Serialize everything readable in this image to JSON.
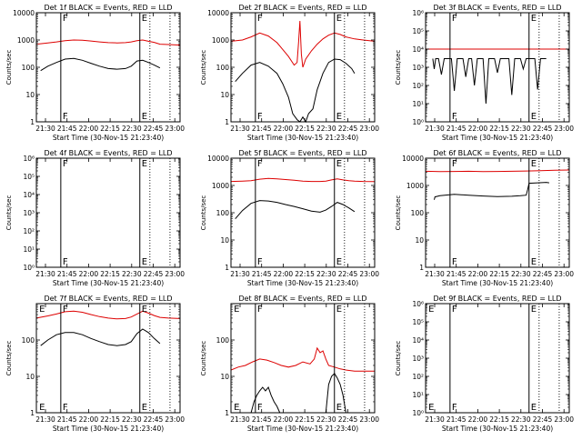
{
  "x_axis_label": "Start Time (30-Nov-15 21:23:40)",
  "y_axis_label": "Counts/sec",
  "x_tick_labels": [
    "21:30",
    "21:45",
    "22:00",
    "22:15",
    "22:30",
    "22:45",
    "23:00"
  ],
  "x_ticks_min": [
    6.33,
    21.33,
    36.33,
    51.33,
    66.33,
    81.33,
    96.33
  ],
  "x_range_min": [
    0,
    100
  ],
  "colors": {
    "events": "#000000",
    "lld": "#dd0000",
    "axes": "#000000"
  },
  "chart_data": [
    {
      "type": "line",
      "title": "Det 1f BLACK = Events, RED = LLD",
      "ylim": [
        1,
        10000
      ],
      "yscale": "log",
      "y_tick_labels": [
        "1",
        "10",
        "100",
        "1000",
        "10000"
      ],
      "y_tick_values": [
        1,
        10,
        100,
        1000,
        10000
      ],
      "markers": [
        {
          "label": "F",
          "x": 17,
          "style": "solid"
        },
        {
          "label": "E",
          "x": 72,
          "style": "solid"
        },
        {
          "label": "",
          "x": 79,
          "style": "dotted"
        },
        {
          "label": "",
          "x": 93,
          "style": "dotted"
        }
      ],
      "series": [
        {
          "role": "events",
          "x": [
            3,
            8,
            14,
            20,
            26,
            32,
            38,
            44,
            50,
            56,
            62,
            66,
            70,
            74,
            78,
            82,
            86
          ],
          "y": [
            75,
            110,
            150,
            200,
            210,
            180,
            140,
            110,
            90,
            85,
            90,
            110,
            170,
            180,
            150,
            120,
            95
          ]
        },
        {
          "role": "lld",
          "x": [
            0,
            8,
            14,
            20,
            26,
            32,
            38,
            44,
            50,
            56,
            62,
            66,
            70,
            74,
            78,
            82,
            86,
            92,
            100
          ],
          "y": [
            700,
            780,
            850,
            950,
            1000,
            980,
            920,
            850,
            800,
            780,
            800,
            850,
            950,
            1000,
            900,
            820,
            700,
            680,
            650
          ]
        }
      ]
    },
    {
      "type": "line",
      "title": "Det 2f BLACK = Events, RED = LLD",
      "ylim": [
        1,
        10000
      ],
      "yscale": "log",
      "y_tick_labels": [
        "1",
        "10",
        "100",
        "1000",
        "10000"
      ],
      "y_tick_values": [
        1,
        10,
        100,
        1000,
        10000
      ],
      "markers": [
        {
          "label": "F",
          "x": 17,
          "style": "solid"
        },
        {
          "label": "E",
          "x": 72,
          "style": "solid"
        },
        {
          "label": "",
          "x": 79,
          "style": "dotted"
        },
        {
          "label": "",
          "x": 93,
          "style": "dotted"
        }
      ],
      "series": [
        {
          "role": "events",
          "x": [
            3,
            8,
            14,
            20,
            26,
            32,
            36,
            40,
            43,
            46,
            48,
            50,
            52,
            54,
            57,
            60,
            64,
            68,
            72,
            76,
            80,
            84,
            86
          ],
          "y": [
            30,
            60,
            120,
            150,
            110,
            60,
            25,
            8,
            2,
            1.2,
            1,
            1.5,
            1,
            2,
            3,
            15,
            60,
            150,
            200,
            190,
            140,
            90,
            60
          ]
        },
        {
          "role": "lld",
          "x": [
            0,
            8,
            14,
            20,
            26,
            32,
            36,
            40,
            44,
            46,
            47,
            48,
            49,
            50,
            52,
            56,
            60,
            64,
            68,
            72,
            76,
            80,
            86,
            92,
            100
          ],
          "y": [
            900,
            1000,
            1300,
            1800,
            1400,
            800,
            450,
            250,
            120,
            150,
            800,
            5000,
            300,
            100,
            200,
            400,
            700,
            1100,
            1500,
            1800,
            1600,
            1300,
            1100,
            1000,
            900
          ]
        }
      ]
    },
    {
      "type": "line",
      "title": "Det 3f BLACK = Events, RED = LLD",
      "ylim": [
        1,
        1000000
      ],
      "yscale": "log",
      "y_tick_labels": [
        "10⁰",
        "10¹",
        "10²",
        "10³",
        "10⁴",
        "10⁵",
        "10⁶"
      ],
      "y_tick_values": [
        1,
        10,
        100,
        1000,
        10000,
        100000,
        1000000
      ],
      "markers": [
        {
          "label": "F",
          "x": 17,
          "style": "solid"
        },
        {
          "label": "E",
          "x": 72,
          "style": "solid"
        },
        {
          "label": "",
          "x": 79,
          "style": "dotted"
        },
        {
          "label": "",
          "x": 93,
          "style": "dotted"
        }
      ],
      "series": [
        {
          "role": "events",
          "x": [
            5,
            6,
            7,
            9,
            11,
            13,
            15,
            18,
            20,
            22,
            24,
            26,
            28,
            30,
            32,
            34,
            36,
            38,
            40,
            42,
            44,
            46,
            48,
            50,
            52,
            54,
            56,
            58,
            60,
            62,
            64,
            66,
            68,
            70,
            72,
            74,
            76,
            78,
            80,
            82,
            84
          ],
          "y": [
            3000,
            800,
            3000,
            3000,
            400,
            3000,
            3000,
            3000,
            50,
            3000,
            3000,
            3000,
            300,
            3000,
            3000,
            100,
            3000,
            3000,
            3000,
            10,
            3000,
            3000,
            3000,
            500,
            3000,
            3000,
            3000,
            3000,
            30,
            3000,
            3000,
            3000,
            800,
            3000,
            3000,
            3000,
            3000,
            60,
            3000,
            3000,
            3000
          ]
        },
        {
          "role": "lld",
          "x": [
            0,
            100
          ],
          "y": [
            10000,
            10000
          ]
        }
      ]
    },
    {
      "type": "line",
      "title": "Det 4f BLACK = Events, RED = LLD",
      "ylim": [
        1,
        1000000
      ],
      "yscale": "log",
      "y_tick_labels": [
        "10⁰",
        "10¹",
        "10²",
        "10³",
        "10⁴",
        "10⁵",
        "10⁶"
      ],
      "y_tick_values": [
        1,
        10,
        100,
        1000,
        10000,
        100000,
        1000000
      ],
      "markers": [
        {
          "label": "F",
          "x": 17,
          "style": "solid"
        },
        {
          "label": "E",
          "x": 72,
          "style": "solid"
        },
        {
          "label": "",
          "x": 79,
          "style": "dotted"
        },
        {
          "label": "",
          "x": 93,
          "style": "dotted"
        }
      ],
      "series": []
    },
    {
      "type": "line",
      "title": "Det 5f BLACK = Events, RED = LLD",
      "ylim": [
        1,
        10000
      ],
      "yscale": "log",
      "y_tick_labels": [
        "1",
        "10",
        "100",
        "1000",
        "10000"
      ],
      "y_tick_values": [
        1,
        10,
        100,
        1000,
        10000
      ],
      "markers": [
        {
          "label": "F",
          "x": 17,
          "style": "solid"
        },
        {
          "label": "E",
          "x": 72,
          "style": "solid"
        },
        {
          "label": "",
          "x": 79,
          "style": "dotted"
        },
        {
          "label": "",
          "x": 93,
          "style": "dotted"
        }
      ],
      "series": [
        {
          "role": "events",
          "x": [
            3,
            8,
            14,
            20,
            26,
            32,
            38,
            44,
            50,
            56,
            62,
            66,
            70,
            74,
            78,
            82,
            86
          ],
          "y": [
            60,
            120,
            220,
            280,
            270,
            240,
            200,
            170,
            140,
            115,
            105,
            125,
            170,
            240,
            200,
            150,
            110
          ]
        },
        {
          "role": "lld",
          "x": [
            0,
            8,
            14,
            20,
            26,
            32,
            38,
            44,
            50,
            56,
            62,
            66,
            70,
            74,
            78,
            82,
            86,
            92,
            100
          ],
          "y": [
            1400,
            1450,
            1500,
            1700,
            1800,
            1750,
            1650,
            1550,
            1450,
            1400,
            1400,
            1450,
            1600,
            1750,
            1600,
            1500,
            1450,
            1400,
            1380
          ]
        }
      ]
    },
    {
      "type": "line",
      "title": "Det 6f BLACK = Events, RED = LLD",
      "ylim": [
        1,
        10000
      ],
      "yscale": "log",
      "y_tick_labels": [
        "1",
        "10",
        "100",
        "1000",
        "10000"
      ],
      "y_tick_values": [
        1,
        10,
        100,
        1000,
        10000
      ],
      "markers": [
        {
          "label": "F",
          "x": 17,
          "style": "solid"
        },
        {
          "label": "E",
          "x": 72,
          "style": "solid"
        },
        {
          "label": "",
          "x": 79,
          "style": "dotted"
        },
        {
          "label": "",
          "x": 93,
          "style": "dotted"
        }
      ],
      "series": [
        {
          "role": "events",
          "x": [
            6,
            6.5,
            10,
            20,
            30,
            40,
            50,
            60,
            66,
            70,
            71,
            72,
            78,
            84,
            86
          ],
          "y": [
            300,
            380,
            420,
            470,
            440,
            410,
            390,
            400,
            420,
            440,
            700,
            1200,
            1250,
            1300,
            1250
          ]
        },
        {
          "role": "lld",
          "x": [
            0,
            10,
            20,
            30,
            40,
            50,
            60,
            70,
            80,
            90,
            100
          ],
          "y": [
            3300,
            3200,
            3250,
            3300,
            3200,
            3250,
            3300,
            3400,
            3500,
            3600,
            3700
          ]
        }
      ]
    },
    {
      "type": "line",
      "title": "Det 7f BLACK = Events, RED = LLD",
      "ylim": [
        1,
        1000
      ],
      "yscale": "log",
      "y_tick_labels": [
        "1",
        "10",
        "100"
      ],
      "y_tick_values": [
        1,
        10,
        100
      ],
      "markers": [
        {
          "label": "E",
          "x": 2,
          "style": "none"
        },
        {
          "label": "F",
          "x": 17,
          "style": "solid"
        },
        {
          "label": "E",
          "x": 72,
          "style": "solid"
        },
        {
          "label": "",
          "x": 79,
          "style": "dotted"
        },
        {
          "label": "",
          "x": 93,
          "style": "dotted"
        }
      ],
      "series": [
        {
          "role": "events",
          "x": [
            3,
            8,
            14,
            20,
            26,
            32,
            38,
            44,
            50,
            56,
            62,
            66,
            70,
            74,
            78,
            82,
            86
          ],
          "y": [
            70,
            100,
            140,
            160,
            160,
            140,
            110,
            90,
            75,
            70,
            75,
            90,
            150,
            200,
            160,
            110,
            80
          ]
        },
        {
          "role": "lld",
          "x": [
            0,
            8,
            14,
            20,
            26,
            32,
            38,
            44,
            50,
            56,
            62,
            66,
            70,
            74,
            78,
            82,
            86,
            92,
            100
          ],
          "y": [
            400,
            460,
            520,
            600,
            620,
            580,
            500,
            440,
            400,
            380,
            390,
            430,
            520,
            620,
            550,
            470,
            420,
            400,
            390
          ]
        }
      ]
    },
    {
      "type": "line",
      "title": "Det 8f BLACK = Events, RED = LLD",
      "ylim": [
        1,
        1000
      ],
      "yscale": "log",
      "y_tick_labels": [
        "1",
        "10",
        "100"
      ],
      "y_tick_values": [
        1,
        10,
        100
      ],
      "markers": [
        {
          "label": "E",
          "x": 2,
          "style": "none"
        },
        {
          "label": "F",
          "x": 17,
          "style": "solid"
        },
        {
          "label": "E",
          "x": 72,
          "style": "solid"
        },
        {
          "label": "",
          "x": 79,
          "style": "dotted"
        },
        {
          "label": "",
          "x": 93,
          "style": "dotted"
        }
      ],
      "series": [
        {
          "role": "events",
          "x": [
            14,
            16,
            18,
            20,
            22,
            24,
            26,
            28,
            30,
            32,
            34
          ],
          "y": [
            1,
            2,
            3,
            4,
            5,
            4,
            5,
            3,
            2,
            1.5,
            1
          ]
        },
        {
          "role": "events",
          "x": [
            66,
            68,
            70,
            72,
            74,
            76,
            78,
            80
          ],
          "y": [
            1,
            6,
            10,
            12,
            9,
            6,
            3,
            1
          ]
        },
        {
          "role": "lld",
          "x": [
            0,
            5,
            10,
            15,
            20,
            25,
            30,
            35,
            40,
            45,
            50,
            55,
            58,
            60,
            62,
            64,
            66,
            68,
            72,
            76,
            80,
            86,
            92,
            100
          ],
          "y": [
            15,
            18,
            20,
            25,
            30,
            28,
            24,
            20,
            18,
            20,
            25,
            22,
            30,
            60,
            45,
            50,
            30,
            20,
            18,
            16,
            15,
            14,
            14,
            14
          ]
        }
      ]
    },
    {
      "type": "line",
      "title": "Det 9f BLACK = Events, RED = LLD",
      "ylim": [
        1,
        1000000
      ],
      "yscale": "log",
      "y_tick_labels": [
        "10⁰",
        "10¹",
        "10²",
        "10³",
        "10⁴",
        "10⁵",
        "10⁶"
      ],
      "y_tick_values": [
        1,
        10,
        100,
        1000,
        10000,
        100000,
        1000000
      ],
      "markers": [
        {
          "label": "E",
          "x": 2,
          "style": "none"
        },
        {
          "label": "F",
          "x": 17,
          "style": "solid"
        },
        {
          "label": "E",
          "x": 72,
          "style": "solid"
        },
        {
          "label": "",
          "x": 79,
          "style": "dotted"
        },
        {
          "label": "",
          "x": 93,
          "style": "dotted"
        }
      ],
      "series": []
    }
  ]
}
